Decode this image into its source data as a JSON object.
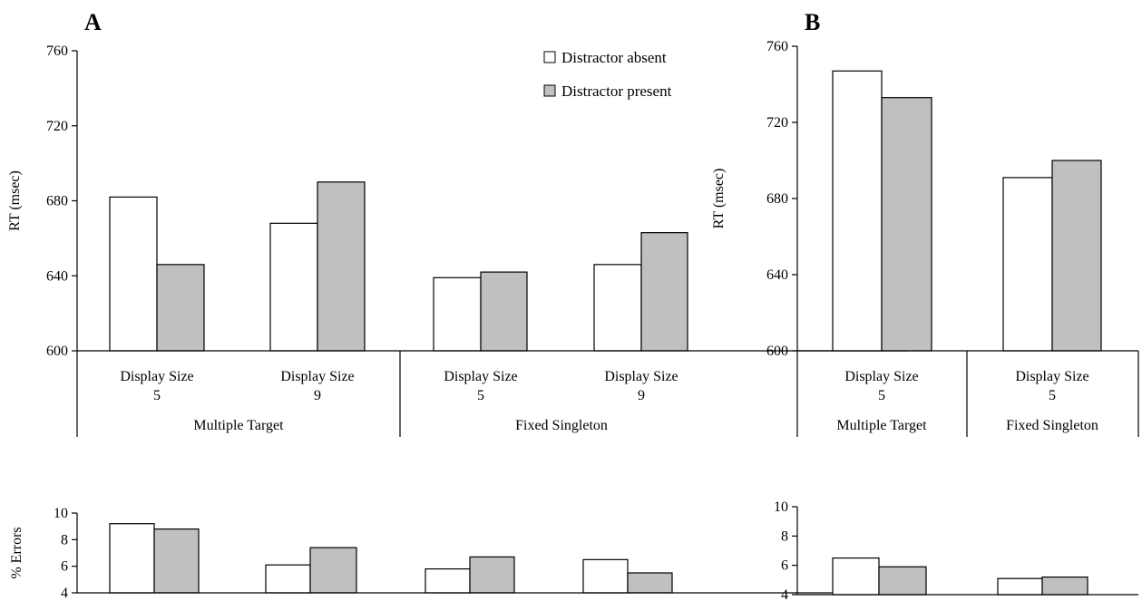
{
  "panels": {
    "A": {
      "label": "A"
    },
    "B": {
      "label": "B"
    }
  },
  "legend": [
    {
      "name": "Distractor absent",
      "color": "#ffffff"
    },
    {
      "name": "Distractor present",
      "color": "#c0c0c0"
    }
  ],
  "chart_data": [
    {
      "id": "A-rt",
      "type": "bar",
      "panel": "A",
      "ylabel": "RT (msec)",
      "ylim": [
        600,
        760
      ],
      "yticks": [
        600,
        640,
        680,
        720,
        760
      ],
      "categories": [
        {
          "line1": "Display Size",
          "line2": "5",
          "group": "Multiple Target"
        },
        {
          "line1": "Display Size",
          "line2": "9",
          "group": "Multiple Target"
        },
        {
          "line1": "Display Size",
          "line2": "5",
          "group": "Fixed Singleton"
        },
        {
          "line1": "Display Size",
          "line2": "9",
          "group": "Fixed Singleton"
        }
      ],
      "groups": [
        "Multiple Target",
        "Fixed Singleton"
      ],
      "series": [
        {
          "name": "Distractor absent",
          "values": [
            682,
            668,
            639,
            646
          ]
        },
        {
          "name": "Distractor present",
          "values": [
            646,
            690,
            642,
            663
          ]
        }
      ]
    },
    {
      "id": "A-err",
      "type": "bar",
      "panel": "A",
      "ylabel": "% Errors",
      "ylim": [
        4,
        10
      ],
      "yticks": [
        4,
        6,
        8,
        10
      ],
      "categories": [
        "Multiple Target / Display Size 5",
        "Multiple Target / Display Size 9",
        "Fixed Singleton / Display Size 5",
        "Fixed Singleton / Display Size 9"
      ],
      "series": [
        {
          "name": "Distractor absent",
          "values": [
            9.2,
            6.1,
            5.8,
            6.5
          ]
        },
        {
          "name": "Distractor present",
          "values": [
            8.8,
            7.4,
            6.7,
            5.5
          ]
        }
      ]
    },
    {
      "id": "B-rt",
      "type": "bar",
      "panel": "B",
      "ylabel": "RT (msec)",
      "ylim": [
        600,
        760
      ],
      "yticks": [
        600,
        640,
        680,
        720,
        760
      ],
      "categories": [
        {
          "line1": "Display Size",
          "line2": "5",
          "group": "Multiple Target"
        },
        {
          "line1": "Display Size",
          "line2": "5",
          "group": "Fixed Singleton"
        }
      ],
      "groups": [
        "Multiple Target",
        "Fixed Singleton"
      ],
      "series": [
        {
          "name": "Distractor absent",
          "values": [
            747,
            691
          ]
        },
        {
          "name": "Distractor present",
          "values": [
            733,
            700
          ]
        }
      ]
    },
    {
      "id": "B-err",
      "type": "bar",
      "panel": "B",
      "ylabel": "",
      "ylim": [
        4,
        10
      ],
      "yticks": [
        4,
        6,
        8,
        10
      ],
      "categories": [
        "Multiple Target / Display Size 5",
        "Fixed Singleton / Display Size 5"
      ],
      "series": [
        {
          "name": "Distractor absent",
          "values": [
            6.5,
            5.1
          ]
        },
        {
          "name": "Distractor present",
          "values": [
            5.9,
            5.2
          ]
        }
      ]
    }
  ]
}
